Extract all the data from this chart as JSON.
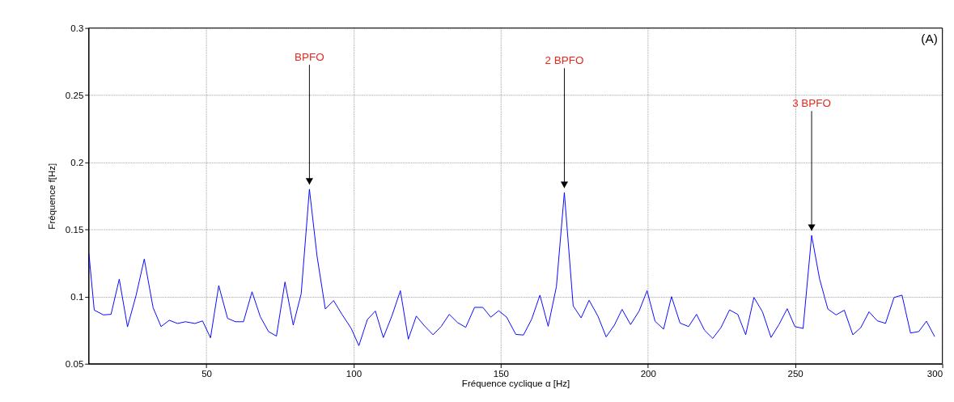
{
  "chart_data": {
    "type": "line",
    "xlabel": "Fréquence cyclique α [Hz]",
    "ylabel": "Fréquence f[Hz]",
    "xlim": [
      10,
      300
    ],
    "ylim": [
      0.05,
      0.3
    ],
    "xticks": [
      50,
      100,
      150,
      200,
      250,
      300
    ],
    "yticks": [
      0.05,
      0.1,
      0.15,
      0.2,
      0.25,
      0.3
    ],
    "grid": true,
    "marker": "none",
    "line_style": "solid",
    "series": [
      {
        "color": "#0000ff",
        "x": [
          10.1,
          11.9,
          15.0,
          17.6,
          20.4,
          23.2,
          26.1,
          28.9,
          31.9,
          34.6,
          37.4,
          40.2,
          42.9,
          46.1,
          48.7,
          51.4,
          54.2,
          57.2,
          59.9,
          62.6,
          65.5,
          68.3,
          71.1,
          73.8,
          76.7,
          79.5,
          82.2,
          85.0,
          87.6,
          90.4,
          93.2,
          96.0,
          99.2,
          101.8,
          104.7,
          107.4,
          110.1,
          113.0,
          115.9,
          118.6,
          121.3,
          124.1,
          127.0,
          129.8,
          132.5,
          135.3,
          138.1,
          141.1,
          143.9,
          146.6,
          149.3,
          152.0,
          155.1,
          157.7,
          160.5,
          163.3,
          166.1,
          168.9,
          171.6,
          174.6,
          177.3,
          180.0,
          183.0,
          185.8,
          188.6,
          191.2,
          194.1,
          197.0,
          199.7,
          202.4,
          205.3,
          208.0,
          210.9,
          213.8,
          216.5,
          219.2,
          222.0,
          224.8,
          227.7,
          230.5,
          233.2,
          236.0,
          238.9,
          241.8,
          244.5,
          247.3,
          249.9,
          252.7,
          255.6,
          258.3,
          261.1,
          263.9,
          266.7,
          269.6,
          272.3,
          275.1,
          277.9,
          280.7,
          283.6,
          286.3,
          289.2,
          292.0,
          294.6,
          297.4
        ],
        "values": [
          0.132,
          0.09,
          0.0864,
          0.0868,
          0.113,
          0.0775,
          0.1008,
          0.128,
          0.0918,
          0.0777,
          0.0824,
          0.08,
          0.0813,
          0.08,
          0.0819,
          0.0693,
          0.1082,
          0.0838,
          0.0813,
          0.0813,
          0.1036,
          0.0851,
          0.074,
          0.0706,
          0.1109,
          0.0788,
          0.1021,
          0.18,
          0.13,
          0.0908,
          0.0971,
          0.087,
          0.0763,
          0.0635,
          0.083,
          0.0893,
          0.0695,
          0.0855,
          0.1044,
          0.0683,
          0.0855,
          0.0782,
          0.0716,
          0.0779,
          0.0868,
          0.0807,
          0.0771,
          0.092,
          0.092,
          0.0847,
          0.0895,
          0.0847,
          0.0719,
          0.0714,
          0.0832,
          0.1011,
          0.0779,
          0.1074,
          0.1775,
          0.0931,
          0.0842,
          0.0973,
          0.0855,
          0.07,
          0.0788,
          0.0905,
          0.0792,
          0.0893,
          0.1044,
          0.0817,
          0.0758,
          0.1,
          0.0803,
          0.0777,
          0.0868,
          0.075,
          0.0689,
          0.0769,
          0.0901,
          0.0868,
          0.0716,
          0.0994,
          0.0887,
          0.0696,
          0.0792,
          0.091,
          0.0777,
          0.0763,
          0.1456,
          0.1132,
          0.0908,
          0.0864,
          0.0899,
          0.0716,
          0.0769,
          0.0887,
          0.082,
          0.0801,
          0.0994,
          0.1011,
          0.0729,
          0.074,
          0.0817,
          0.0702
        ]
      }
    ],
    "annotations": [
      {
        "text": "BPFO",
        "x": 85.0,
        "y": 0.18
      },
      {
        "text": "2 BPFO",
        "x": 171.6,
        "y": 0.1775
      },
      {
        "text": "3 BPFO",
        "x": 255.6,
        "y": 0.1456
      },
      "(A)"
    ]
  }
}
